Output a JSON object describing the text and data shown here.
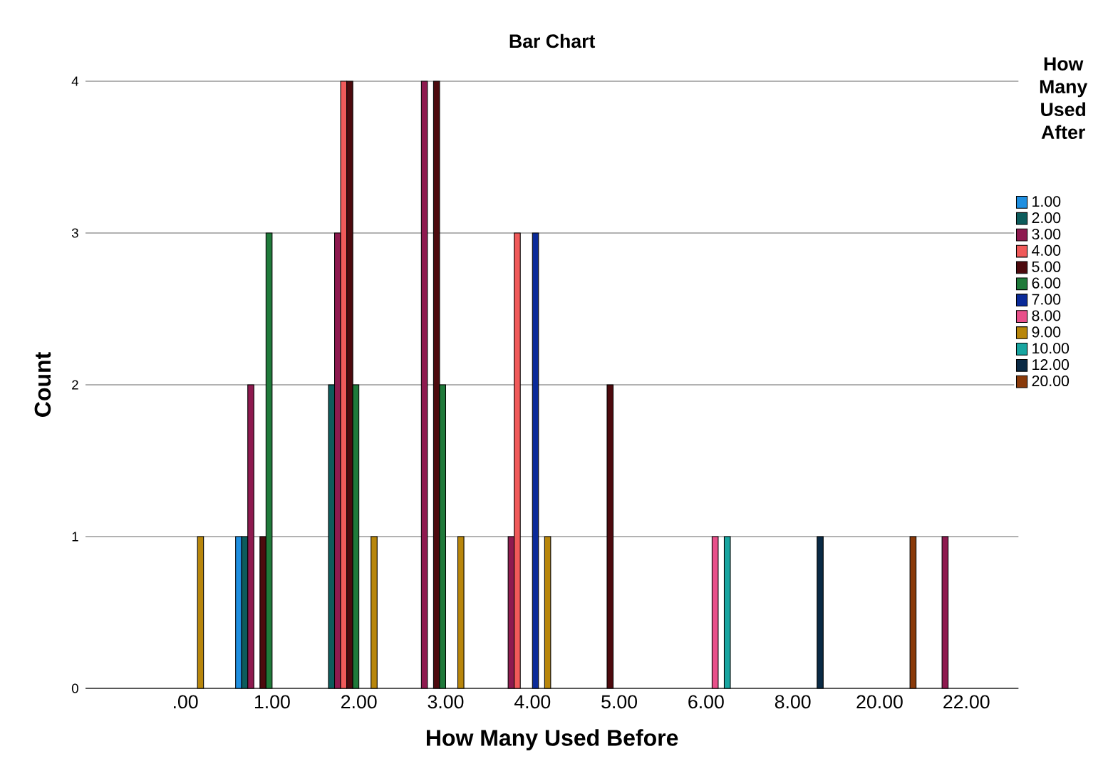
{
  "chart_data": {
    "type": "bar",
    "title": "Bar Chart",
    "xlabel": "How Many Used Before",
    "ylabel": "Count",
    "legend_title": "How Many Used After",
    "categories": [
      ".00",
      "1.00",
      "2.00",
      "3.00",
      "4.00",
      "5.00",
      "6.00",
      "8.00",
      "20.00",
      "22.00"
    ],
    "series": [
      {
        "name": "1.00",
        "color": "#1f8fe0",
        "values": [
          null,
          1,
          null,
          null,
          null,
          null,
          null,
          null,
          null,
          null
        ]
      },
      {
        "name": "2.00",
        "color": "#0d5c5c",
        "values": [
          null,
          1,
          2,
          null,
          null,
          null,
          null,
          null,
          null,
          null
        ]
      },
      {
        "name": "3.00",
        "color": "#8e1a4f",
        "values": [
          null,
          2,
          3,
          4,
          1,
          null,
          null,
          null,
          null,
          1
        ]
      },
      {
        "name": "4.00",
        "color": "#f05a5a",
        "values": [
          null,
          null,
          4,
          null,
          3,
          null,
          null,
          null,
          null,
          null
        ]
      },
      {
        "name": "5.00",
        "color": "#4d0a0e",
        "values": [
          null,
          1,
          4,
          4,
          null,
          2,
          null,
          null,
          null,
          null
        ]
      },
      {
        "name": "6.00",
        "color": "#1f7a3a",
        "values": [
          null,
          3,
          2,
          2,
          null,
          null,
          null,
          null,
          null,
          null
        ]
      },
      {
        "name": "7.00",
        "color": "#0a2a99",
        "values": [
          null,
          null,
          null,
          null,
          3,
          null,
          null,
          null,
          null,
          null
        ]
      },
      {
        "name": "8.00",
        "color": "#e8508a",
        "values": [
          null,
          null,
          null,
          null,
          null,
          null,
          1,
          null,
          null,
          null
        ]
      },
      {
        "name": "9.00",
        "color": "#b8860b",
        "values": [
          1,
          null,
          1,
          1,
          1,
          null,
          null,
          null,
          null,
          null
        ]
      },
      {
        "name": "10.00",
        "color": "#18a5a0",
        "values": [
          null,
          null,
          null,
          null,
          null,
          null,
          1,
          null,
          null,
          null
        ]
      },
      {
        "name": "12.00",
        "color": "#0a2a45",
        "values": [
          null,
          null,
          null,
          null,
          null,
          null,
          null,
          1,
          null,
          null
        ]
      },
      {
        "name": "20.00",
        "color": "#8a3a0a",
        "values": [
          null,
          null,
          null,
          null,
          null,
          null,
          null,
          null,
          1,
          null
        ]
      }
    ],
    "ylim": [
      0,
      4
    ],
    "yticks": [
      0,
      1,
      2,
      3,
      4
    ],
    "grid": "y",
    "legend": "right"
  }
}
